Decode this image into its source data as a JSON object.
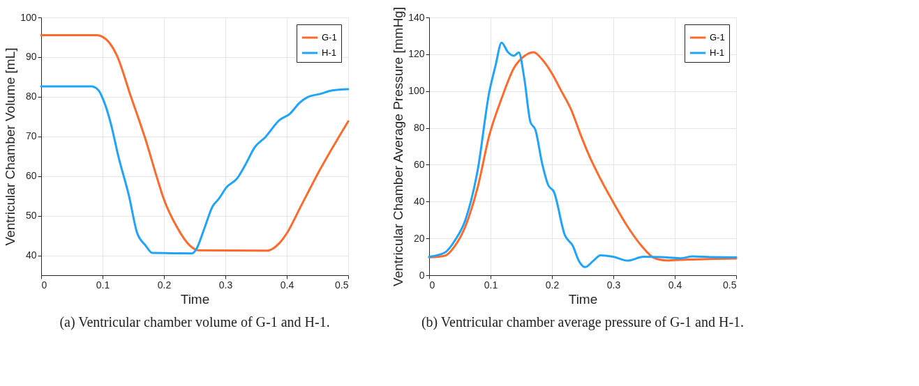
{
  "chart_data": [
    {
      "type": "line",
      "xlabel": "Time",
      "ylabel": "Ventricular Chamber Volume [mL]",
      "xlim": [
        0,
        0.5
      ],
      "xticks": [
        0,
        0.1,
        0.2,
        0.3,
        0.4,
        0.5
      ],
      "ylim": [
        35,
        100
      ],
      "yticks": [
        40,
        50,
        60,
        70,
        80,
        90,
        100
      ],
      "grid": true,
      "legend": "top right",
      "marker": "none",
      "line_style": "solid",
      "annotations": [
        "(a) Ventricular chamber volume of G-1 and H-1."
      ],
      "series": [
        {
          "name": "G-1",
          "color": "#ff6a2b",
          "x": [
            0,
            0.09,
            0.1,
            0.123,
            0.146,
            0.17,
            0.189,
            0.199,
            0.222,
            0.242,
            0.256,
            0.368,
            0.388,
            0.401,
            0.421,
            0.454,
            0.5
          ],
          "values": [
            95.5,
            95.5,
            95.1,
            90.5,
            80.1,
            69.2,
            59.4,
            54.5,
            46.9,
            42.5,
            41.3,
            41.2,
            43.1,
            45.8,
            51.8,
            61.6,
            73.8
          ]
        },
        {
          "name": "H-1",
          "color": "#1ea4fa",
          "x": [
            0,
            0.082,
            0.093,
            0.103,
            0.113,
            0.126,
            0.143,
            0.156,
            0.17,
            0.181,
            0.246,
            0.252,
            0.266,
            0.279,
            0.289,
            0.302,
            0.319,
            0.332,
            0.348,
            0.365,
            0.388,
            0.405,
            0.421,
            0.434,
            0.454,
            0.474,
            0.5
          ],
          "values": [
            82.6,
            82.6,
            81.7,
            78.5,
            73.5,
            64.8,
            55,
            45.8,
            42.5,
            40.6,
            40.5,
            41.4,
            46.9,
            52.3,
            54.2,
            57.2,
            59.4,
            62.7,
            67.3,
            69.8,
            74.1,
            75.7,
            78.5,
            79.9,
            80.7,
            81.6,
            81.9
          ]
        }
      ]
    },
    {
      "type": "line",
      "xlabel": "Time",
      "ylabel": "Ventricular Chamber Average Pressure [mmHg]",
      "xlim": [
        0,
        0.5
      ],
      "xticks": [
        0,
        0.1,
        0.2,
        0.3,
        0.4,
        0.5
      ],
      "ylim": [
        0,
        140
      ],
      "yticks": [
        0,
        20,
        40,
        60,
        80,
        100,
        120,
        140
      ],
      "grid": true,
      "legend": "top right",
      "marker": "none",
      "line_style": "solid",
      "annotations": [
        "(b) Ventricular chamber average pressure of G-1 and H-1."
      ],
      "series": [
        {
          "name": "G-1",
          "color": "#ff6a2b",
          "x": [
            0,
            0.026,
            0.042,
            0.059,
            0.079,
            0.098,
            0.118,
            0.138,
            0.155,
            0.17,
            0.184,
            0.201,
            0.214,
            0.231,
            0.247,
            0.26,
            0.277,
            0.3,
            0.323,
            0.346,
            0.366,
            0.386,
            0.422,
            0.5
          ],
          "values": [
            9.7,
            10.6,
            15.9,
            26.5,
            47.7,
            76,
            96,
            112.5,
            119,
            121.1,
            117.2,
            109,
            100.8,
            90.1,
            76,
            65.4,
            53.6,
            39.5,
            26.5,
            15.9,
            9.4,
            8,
            8.5,
            9.1
          ]
        },
        {
          "name": "H-1",
          "color": "#1ea4fa",
          "x": [
            0,
            0.026,
            0.042,
            0.059,
            0.079,
            0.098,
            0.108,
            0.118,
            0.128,
            0.138,
            0.146,
            0.155,
            0.165,
            0.173,
            0.184,
            0.194,
            0.203,
            0.221,
            0.234,
            0.244,
            0.254,
            0.267,
            0.279,
            0.3,
            0.323,
            0.349,
            0.379,
            0.409,
            0.429,
            0.462,
            0.5
          ],
          "values": [
            10,
            12.4,
            18.9,
            30,
            57,
            99.6,
            113.7,
            126.3,
            121.3,
            119.2,
            121,
            106.7,
            83.1,
            79,
            60.7,
            48.9,
            45.4,
            21.8,
            15.9,
            7.7,
            4.4,
            7.7,
            10.8,
            10,
            7.9,
            10,
            9.8,
            9.2,
            10.2,
            9.8,
            9.7
          ]
        }
      ]
    }
  ]
}
